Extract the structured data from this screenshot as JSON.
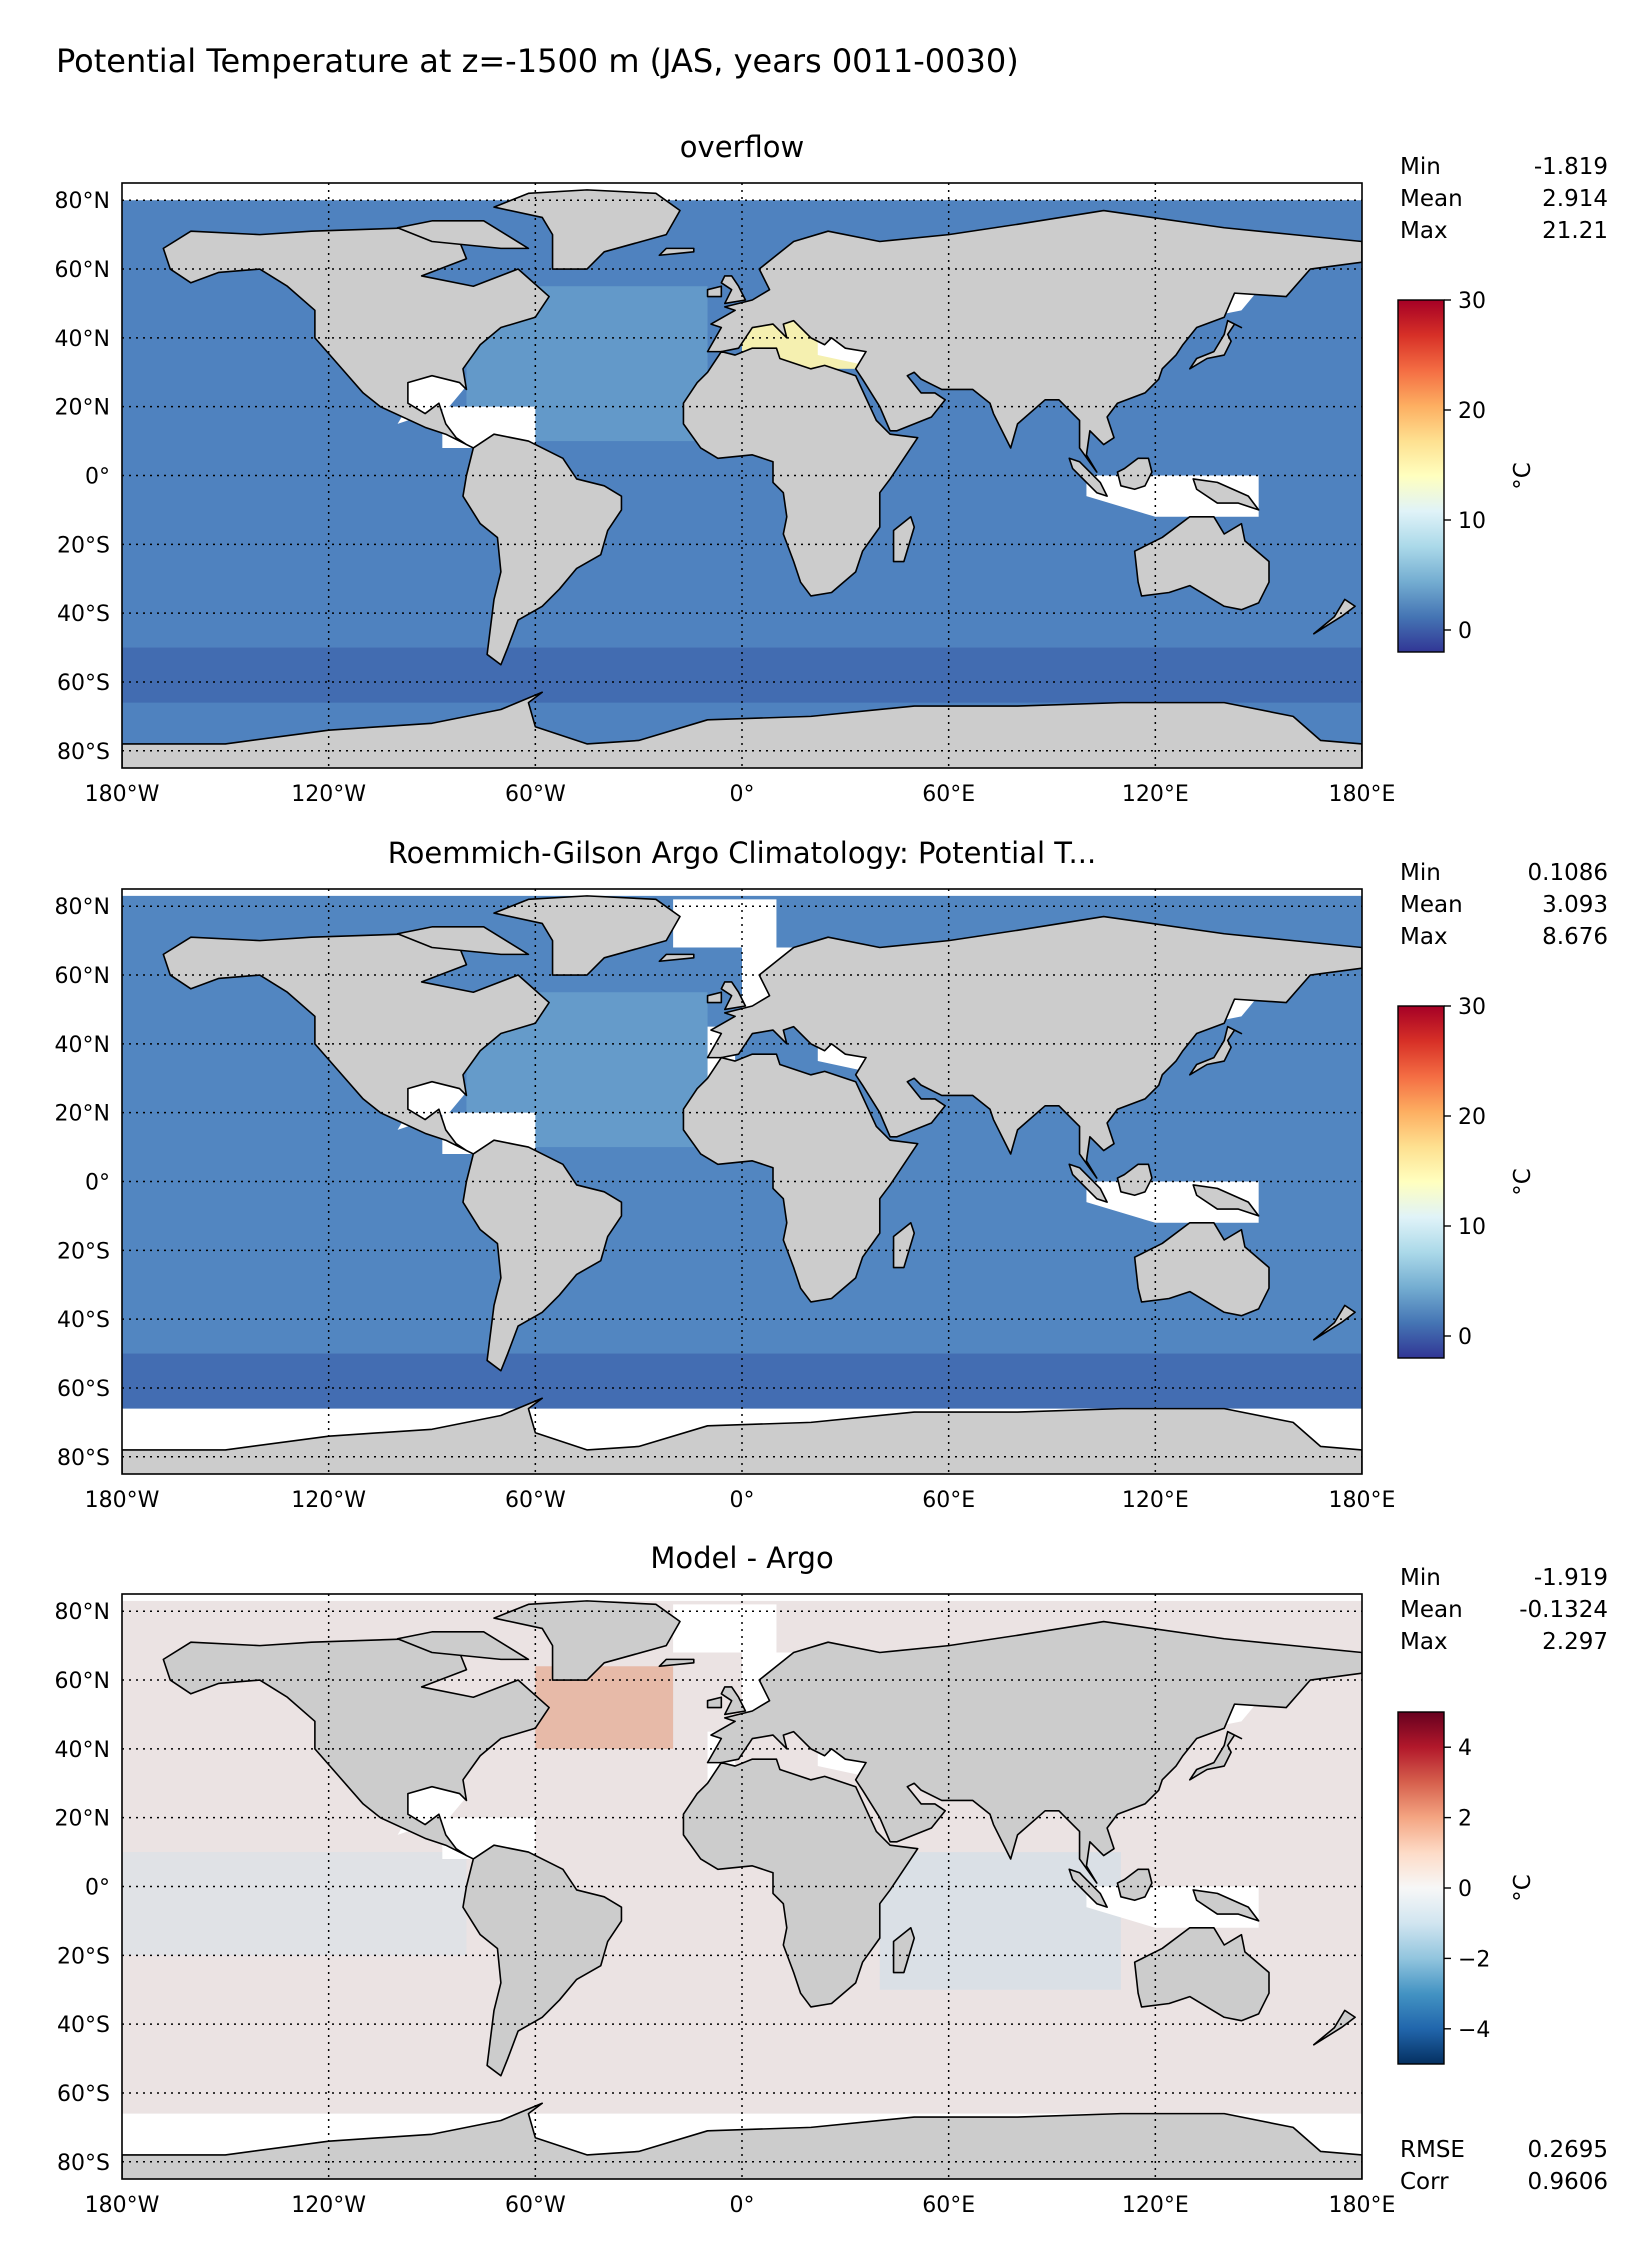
{
  "title": "Potential Temperature at z=-1500 m (JAS, years 0011-0030)",
  "panels": [
    {
      "id": "overflow",
      "title": "overflow",
      "stats": [
        {
          "label": "Min",
          "value": "-1.819"
        },
        {
          "label": "Mean",
          "value": "2.914"
        },
        {
          "label": "Max",
          "value": "21.21"
        }
      ],
      "colorbar": {
        "label": "°C",
        "ticks": [
          "0",
          "10",
          "20",
          "30"
        ],
        "tick_values": [
          0,
          10,
          20,
          30
        ],
        "range": [
          -2,
          30
        ],
        "colormap": "RdYlBu_r"
      },
      "ocean_color": "#4f82bf"
    },
    {
      "id": "argo",
      "title": "Roemmich-Gilson Argo Climatology: Potential T...",
      "stats": [
        {
          "label": "Min",
          "value": "0.1086"
        },
        {
          "label": "Mean",
          "value": "3.093"
        },
        {
          "label": "Max",
          "value": "8.676"
        }
      ],
      "colorbar": {
        "label": "°C",
        "ticks": [
          "0",
          "10",
          "20",
          "30"
        ],
        "tick_values": [
          0,
          10,
          20,
          30
        ],
        "range": [
          -2,
          30
        ],
        "colormap": "RdYlBu_r"
      },
      "ocean_color": "#5286c1"
    },
    {
      "id": "bias",
      "title": "Model - Argo",
      "stats": [
        {
          "label": "Min",
          "value": "-1.919"
        },
        {
          "label": "Mean",
          "value": "-0.1324"
        },
        {
          "label": "Max",
          "value": "2.297"
        }
      ],
      "extra_stats": [
        {
          "label": "RMSE",
          "value": "0.2695"
        },
        {
          "label": "Corr",
          "value": "0.9606"
        }
      ],
      "colorbar": {
        "label": "°C",
        "ticks": [
          "4",
          "2",
          "0",
          "−2",
          "−4"
        ],
        "tick_values": [
          4,
          2,
          0,
          -2,
          -4
        ],
        "range": [
          -5,
          5
        ],
        "colormap": "RdBu_r"
      },
      "ocean_color": "#ebe3e3"
    }
  ],
  "lat_ticks": [
    "80°N",
    "60°N",
    "40°N",
    "20°N",
    "0°",
    "20°S",
    "40°S",
    "60°S",
    "80°S"
  ],
  "lat_values": [
    80,
    60,
    40,
    20,
    0,
    -20,
    -40,
    -60,
    -80
  ],
  "lon_ticks": [
    "180°W",
    "120°W",
    "60°W",
    "0°",
    "60°E",
    "120°E",
    "180°E"
  ],
  "lon_values": [
    -180,
    -120,
    -60,
    0,
    60,
    120,
    180
  ],
  "land_color": "#cccccc",
  "chart_data": [
    {
      "type": "heatmap",
      "title": "overflow",
      "xlabel": "",
      "ylabel": "",
      "xlim": [
        -180,
        180
      ],
      "ylim": [
        -85,
        85
      ],
      "colorbar_label": "°C",
      "colorbar_range": [
        -2,
        30
      ],
      "min": -1.819,
      "mean": 2.914,
      "max": 21.21
    },
    {
      "type": "heatmap",
      "title": "Roemmich-Gilson Argo Climatology: Potential T...",
      "xlabel": "",
      "ylabel": "",
      "xlim": [
        -180,
        180
      ],
      "ylim": [
        -85,
        85
      ],
      "colorbar_label": "°C",
      "colorbar_range": [
        -2,
        30
      ],
      "min": 0.1086,
      "mean": 3.093,
      "max": 8.676
    },
    {
      "type": "heatmap",
      "title": "Model - Argo",
      "xlabel": "",
      "ylabel": "",
      "xlim": [
        -180,
        180
      ],
      "ylim": [
        -85,
        85
      ],
      "colorbar_label": "°C",
      "colorbar_range": [
        -5,
        5
      ],
      "min": -1.919,
      "mean": -0.1324,
      "max": 2.297,
      "rmse": 0.2695,
      "corr": 0.9606
    }
  ]
}
